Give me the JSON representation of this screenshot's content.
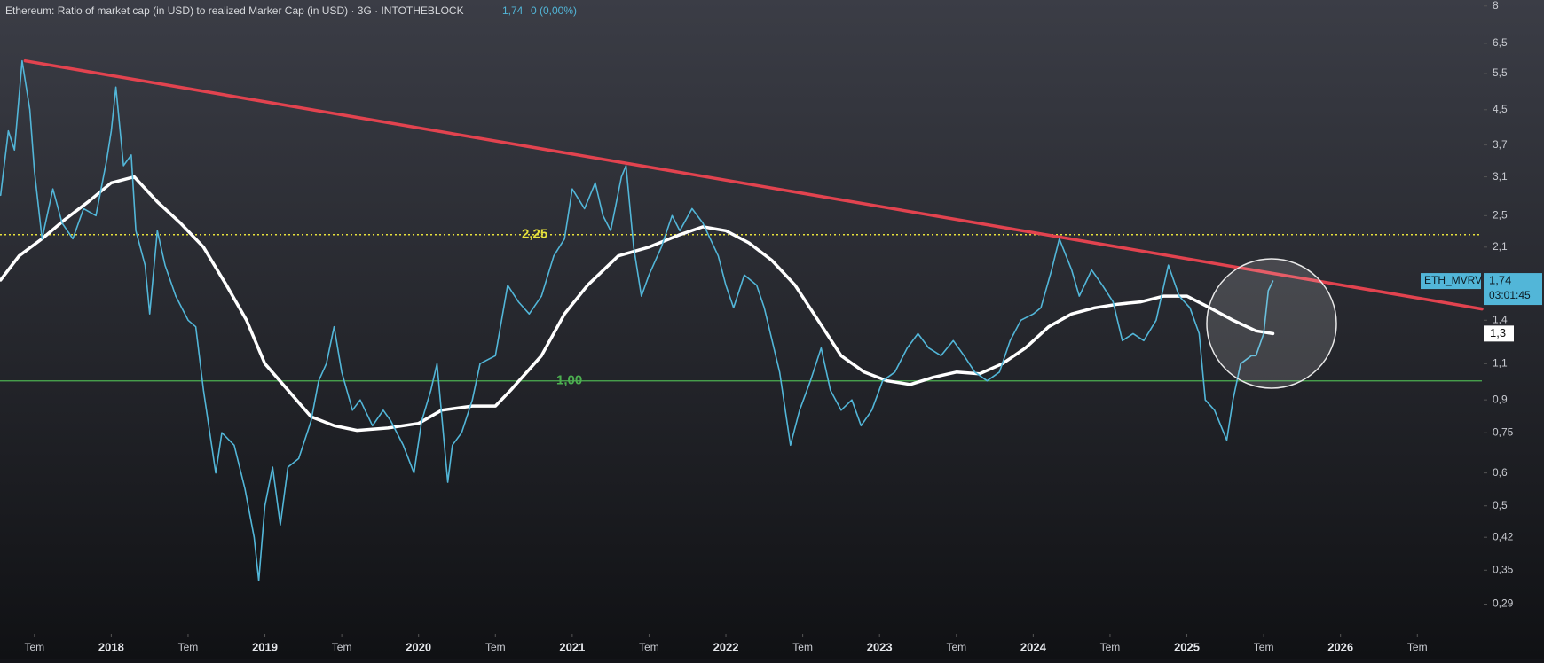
{
  "chart_data": {
    "type": "line",
    "title": "Ethereum: Ratio of market cap (in USD) to realized Marker Cap (in USD) · 3G · INTOTHEBLOCK",
    "last_value_label": "1,74",
    "change_label": "0 (0,00%)",
    "log_scale": true,
    "xlim": [
      2017.276,
      2026.92
    ],
    "ylim": [
      0.246,
      8.27
    ],
    "xticks": [
      {
        "value": 2017.5,
        "label": "Tem"
      },
      2018,
      {
        "value": 2018.5,
        "label": "Tem"
      },
      2019,
      {
        "value": 2019.5,
        "label": "Tem"
      },
      2020,
      {
        "value": 2020.5,
        "label": "Tem"
      },
      2021,
      {
        "value": 2021.5,
        "label": "Tem"
      },
      2022,
      {
        "value": 2022.5,
        "label": "Tem"
      },
      2023,
      {
        "value": 2023.5,
        "label": "Tem"
      },
      2024,
      {
        "value": 2024.5,
        "label": "Tem"
      },
      2025,
      {
        "value": 2025.5,
        "label": "Tem"
      },
      2026,
      {
        "value": 2026.5,
        "label": "Tem"
      }
    ],
    "yticks": [
      8,
      {
        "value": 6.5,
        "label": "6,5"
      },
      {
        "value": 5.5,
        "label": "5,5"
      },
      {
        "value": 4.5,
        "label": "4,5"
      },
      {
        "value": 3.7,
        "label": "3,7"
      },
      {
        "value": 3.1,
        "label": "3,1"
      },
      {
        "value": 2.5,
        "label": "2,5"
      },
      {
        "value": 2.1,
        "label": "2,1"
      },
      {
        "value": 1.4,
        "label": "1,4"
      },
      {
        "value": 1.1,
        "label": "1,1"
      },
      {
        "value": 0.9,
        "label": "0,9"
      },
      {
        "value": 0.75,
        "label": "0,75"
      },
      {
        "value": 0.6,
        "label": "0,6"
      },
      {
        "value": 0.5,
        "label": "0,5"
      },
      {
        "value": 0.42,
        "label": "0,42"
      },
      {
        "value": 0.35,
        "label": "0,35"
      },
      {
        "value": 0.29,
        "label": "0,29"
      }
    ],
    "hlines": [
      {
        "value": 2.25,
        "label": "2,25",
        "color": "#e8e23c",
        "style": "dotted"
      },
      {
        "value": 1.0,
        "label": "1,00",
        "color": "#4caf50",
        "style": "solid"
      }
    ],
    "series": [
      {
        "name": "ETH_MVRV",
        "color": "#52b6d8",
        "x": [
          2017.28,
          2017.33,
          2017.37,
          2017.42,
          2017.47,
          2017.5,
          2017.55,
          2017.62,
          2017.68,
          2017.75,
          2017.82,
          2017.9,
          2017.97,
          2018.0,
          2018.03,
          2018.08,
          2018.13,
          2018.16,
          2018.22,
          2018.25,
          2018.3,
          2018.35,
          2018.42,
          2018.5,
          2018.55,
          2018.6,
          2018.68,
          2018.72,
          2018.8,
          2018.87,
          2018.93,
          2018.96,
          2019.0,
          2019.05,
          2019.1,
          2019.15,
          2019.22,
          2019.3,
          2019.35,
          2019.4,
          2019.45,
          2019.5,
          2019.57,
          2019.62,
          2019.7,
          2019.77,
          2019.82,
          2019.9,
          2019.97,
          2020.02,
          2020.08,
          2020.12,
          2020.19,
          2020.22,
          2020.28,
          2020.35,
          2020.4,
          2020.5,
          2020.58,
          2020.65,
          2020.72,
          2020.8,
          2020.88,
          2020.95,
          2021.0,
          2021.08,
          2021.15,
          2021.2,
          2021.25,
          2021.32,
          2021.35,
          2021.4,
          2021.45,
          2021.5,
          2021.58,
          2021.65,
          2021.7,
          2021.78,
          2021.85,
          2021.95,
          2022.0,
          2022.05,
          2022.12,
          2022.2,
          2022.25,
          2022.35,
          2022.42,
          2022.48,
          2022.55,
          2022.62,
          2022.68,
          2022.75,
          2022.82,
          2022.88,
          2022.95,
          2023.02,
          2023.1,
          2023.18,
          2023.25,
          2023.32,
          2023.4,
          2023.48,
          2023.55,
          2023.62,
          2023.7,
          2023.78,
          2023.85,
          2023.92,
          2024.0,
          2024.05,
          2024.12,
          2024.17,
          2024.25,
          2024.3,
          2024.38,
          2024.45,
          2024.52,
          2024.58,
          2024.65,
          2024.72,
          2024.8,
          2024.88,
          2024.95,
          2025.02,
          2025.08,
          2025.12,
          2025.18,
          2025.26,
          2025.3,
          2025.35,
          2025.42,
          2025.45,
          2025.5,
          2025.53,
          2025.56
        ],
        "values": [
          2.8,
          4.0,
          3.6,
          5.9,
          4.5,
          3.2,
          2.2,
          2.9,
          2.4,
          2.2,
          2.6,
          2.5,
          3.4,
          4.0,
          5.1,
          3.3,
          3.5,
          2.3,
          1.9,
          1.45,
          2.3,
          1.9,
          1.6,
          1.4,
          1.35,
          0.95,
          0.6,
          0.75,
          0.7,
          0.55,
          0.42,
          0.33,
          0.5,
          0.62,
          0.45,
          0.62,
          0.65,
          0.8,
          1.0,
          1.1,
          1.35,
          1.05,
          0.85,
          0.9,
          0.78,
          0.85,
          0.8,
          0.7,
          0.6,
          0.8,
          0.95,
          1.1,
          0.57,
          0.7,
          0.75,
          0.9,
          1.1,
          1.15,
          1.7,
          1.55,
          1.45,
          1.6,
          2.0,
          2.2,
          2.9,
          2.6,
          3.0,
          2.5,
          2.3,
          3.1,
          3.3,
          2.1,
          1.6,
          1.8,
          2.1,
          2.5,
          2.3,
          2.6,
          2.4,
          2.0,
          1.7,
          1.5,
          1.8,
          1.7,
          1.5,
          1.05,
          0.7,
          0.85,
          1.0,
          1.2,
          0.95,
          0.85,
          0.9,
          0.78,
          0.85,
          1.0,
          1.05,
          1.2,
          1.3,
          1.2,
          1.15,
          1.25,
          1.15,
          1.05,
          1.0,
          1.05,
          1.25,
          1.4,
          1.45,
          1.5,
          1.85,
          2.2,
          1.85,
          1.6,
          1.85,
          1.7,
          1.55,
          1.25,
          1.3,
          1.25,
          1.4,
          1.9,
          1.6,
          1.5,
          1.3,
          0.9,
          0.85,
          0.72,
          0.9,
          1.1,
          1.15,
          1.15,
          1.3,
          1.65,
          1.74
        ]
      },
      {
        "color": "#ffffff",
        "x": [
          2017.28,
          2017.4,
          2017.55,
          2017.7,
          2017.85,
          2018.0,
          2018.15,
          2018.3,
          2018.45,
          2018.6,
          2018.75,
          2018.88,
          2019.0,
          2019.15,
          2019.3,
          2019.45,
          2019.6,
          2019.8,
          2020.0,
          2020.15,
          2020.35,
          2020.5,
          2020.6,
          2020.8,
          2020.95,
          2021.1,
          2021.3,
          2021.5,
          2021.7,
          2021.85,
          2022.0,
          2022.15,
          2022.3,
          2022.45,
          2022.6,
          2022.75,
          2022.9,
          2023.05,
          2023.2,
          2023.35,
          2023.5,
          2023.65,
          2023.8,
          2023.95,
          2024.1,
          2024.25,
          2024.4,
          2024.55,
          2024.7,
          2024.85,
          2025.0,
          2025.15,
          2025.3,
          2025.45,
          2025.56
        ],
        "values": [
          1.75,
          2.0,
          2.2,
          2.45,
          2.7,
          3.0,
          3.1,
          2.7,
          2.4,
          2.1,
          1.7,
          1.4,
          1.1,
          0.95,
          0.82,
          0.78,
          0.76,
          0.77,
          0.79,
          0.85,
          0.87,
          0.87,
          0.95,
          1.15,
          1.45,
          1.7,
          2.0,
          2.1,
          2.25,
          2.35,
          2.3,
          2.15,
          1.95,
          1.7,
          1.4,
          1.15,
          1.05,
          1.0,
          0.98,
          1.02,
          1.05,
          1.04,
          1.1,
          1.2,
          1.35,
          1.45,
          1.5,
          1.53,
          1.55,
          1.6,
          1.6,
          1.5,
          1.4,
          1.32,
          1.3
        ]
      },
      {
        "color": "#e2434f",
        "x": [
          2017.44,
          2026.92
        ],
        "values": [
          5.9,
          1.49
        ]
      }
    ],
    "price_tags": [
      {
        "value": 1.74,
        "label": "1,74",
        "countdown": "03:01:45",
        "color": "#52b6d8"
      },
      {
        "value": 1.3,
        "label": "1,3",
        "color": "#ffffff"
      }
    ]
  }
}
